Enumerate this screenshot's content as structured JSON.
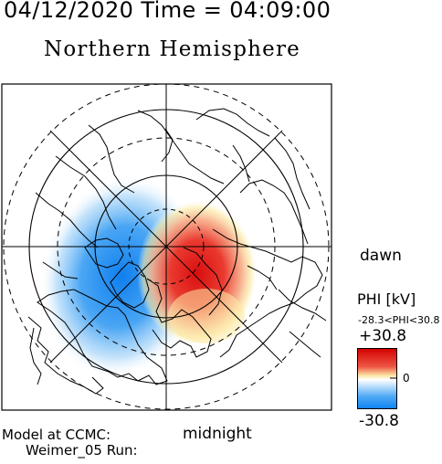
{
  "header": {
    "timestamp": "04/12/2020 Time = 04:09:00",
    "hemisphere": "Northern Hemisphere"
  },
  "map": {
    "dawn_label": "dawn",
    "midnight_label": "midnight",
    "colors": {
      "positive": "#e21a1a",
      "negative": "#1a86f0",
      "neutral": "#ffffff",
      "midpositive": "#f5e68c"
    }
  },
  "colorbar": {
    "title": "PHI [kV]",
    "range_text": "-28.3<PHI<30.8",
    "max_label": "+30.8",
    "zero_label": "0",
    "min_label": "-30.8"
  },
  "footer": {
    "model_line1": "Model at CCMC:",
    "model_line2": "Weimer_05 Run:"
  }
}
